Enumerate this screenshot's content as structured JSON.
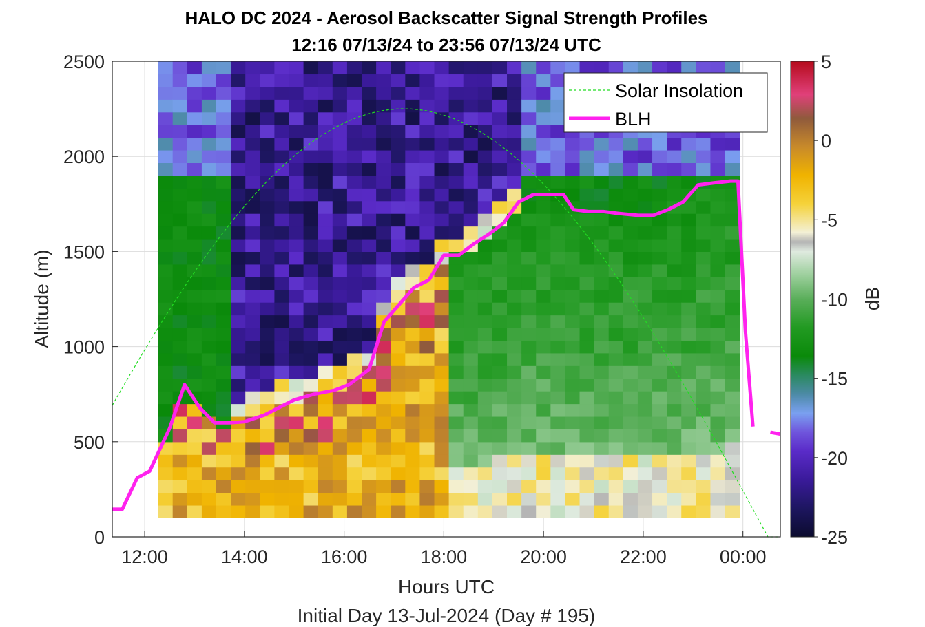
{
  "chart_data": {
    "type": "heatmap",
    "title": "HALO DC 2024 - Aerosol Backscatter Signal Strength Profiles",
    "subtitle": "12:16 07/13/24 to 23:56 07/13/24  UTC",
    "xlabel": "Hours UTC",
    "footnote": "Initial Day 13-Jul-2024 (Day # 195)",
    "ylabel": "Altitude (m)",
    "colorbar_label": "dB",
    "colorbar_ticks": [
      "5",
      "0",
      "-5",
      "-10",
      "-15",
      "-20",
      "-25"
    ],
    "clim": [
      -25,
      5
    ],
    "xlim_hours": [
      11.35,
      24.75
    ],
    "ylim": [
      0,
      2500
    ],
    "x_ticks": [
      "12:00",
      "14:00",
      "16:00",
      "18:00",
      "20:00",
      "22:00",
      "00:00"
    ],
    "y_ticks": [
      "0",
      "500",
      "1000",
      "1500",
      "2000",
      "2500"
    ],
    "grid": true,
    "legend_position": "top-right",
    "legend": [
      "Solar Insolation",
      "BLH"
    ],
    "series_colors": {
      "Solar Insolation": "#22dd22",
      "BLH": "#ff22ee"
    },
    "heatmap": {
      "time_start_hours": 12.27,
      "time_end_hours": 23.93,
      "altitude_min": 100,
      "altitude_max": 2500
    },
    "blh": {
      "x_hours": [
        11.35,
        11.55,
        11.85,
        12.1,
        12.5,
        12.8,
        13.1,
        13.4,
        13.7,
        14.0,
        14.4,
        14.7,
        15.0,
        15.4,
        15.8,
        16.1,
        16.5,
        16.8,
        17.1,
        17.4,
        17.7,
        18.0,
        18.3,
        18.6,
        18.9,
        19.2,
        19.5,
        19.8,
        20.1,
        20.4,
        20.6,
        20.9,
        21.2,
        21.5,
        21.9,
        22.2,
        22.5,
        22.8,
        23.1,
        23.4,
        23.75,
        23.9,
        24.05,
        24.2,
        24.25,
        24.55,
        24.75
      ],
      "altitude_m": [
        145,
        145,
        310,
        345,
        570,
        800,
        680,
        600,
        600,
        605,
        640,
        680,
        720,
        750,
        770,
        800,
        880,
        1130,
        1220,
        1310,
        1350,
        1480,
        1480,
        1540,
        1590,
        1650,
        1760,
        1800,
        1800,
        1800,
        1720,
        1710,
        1710,
        1700,
        1690,
        1690,
        1720,
        1760,
        1850,
        1860,
        1870,
        1870,
        1080,
        580,
        null,
        550,
        540
      ]
    },
    "solar_insolation": {
      "peak_time_hours": 17.2,
      "peak_altitude_m": 2250,
      "half_width_hours": 7.3
    }
  },
  "colors": {
    "colormap": [
      [
        0.0,
        "#0b0b2e"
      ],
      [
        0.06,
        "#1d1660"
      ],
      [
        0.12,
        "#3a1a9a"
      ],
      [
        0.18,
        "#5a2bc8"
      ],
      [
        0.22,
        "#6f55dc"
      ],
      [
        0.26,
        "#7aa0f0"
      ],
      [
        0.3,
        "#4c8aa6"
      ],
      [
        0.34,
        "#2a8a60"
      ],
      [
        0.38,
        "#0a8a0a"
      ],
      [
        0.44,
        "#229a22"
      ],
      [
        0.5,
        "#5aae5a"
      ],
      [
        0.55,
        "#9ccf9c"
      ],
      [
        0.6,
        "#dfeadf"
      ],
      [
        0.62,
        "#b4b4b4"
      ],
      [
        0.64,
        "#f3f0d6"
      ],
      [
        0.7,
        "#f5d23a"
      ],
      [
        0.76,
        "#f0b300"
      ],
      [
        0.82,
        "#c88a2a"
      ],
      [
        0.88,
        "#8f5a3c"
      ],
      [
        0.93,
        "#e0407a"
      ],
      [
        1.0,
        "#b50b1c"
      ]
    ]
  }
}
